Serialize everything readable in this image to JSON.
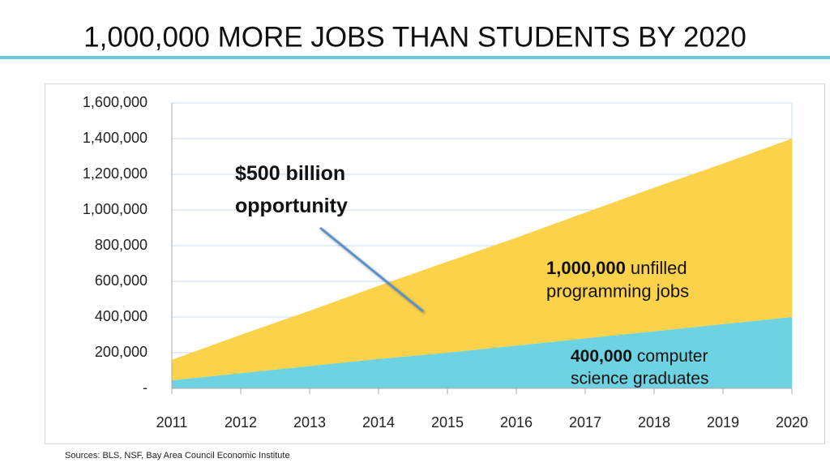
{
  "chart_data": {
    "type": "stacked-area",
    "title": "1,000,000 MORE JOBS THAN STUDENTS BY 2020",
    "categories": [
      "2011",
      "2012",
      "2013",
      "2014",
      "2015",
      "2016",
      "2017",
      "2018",
      "2019",
      "2020"
    ],
    "series": [
      {
        "name": "computer science graduates",
        "color": "#6dd3e2",
        "values": [
          45000,
          85000,
          125000,
          165000,
          200000,
          240000,
          280000,
          320000,
          360000,
          400000
        ]
      },
      {
        "name": "unfilled programming jobs",
        "color": "#fdd24b",
        "values": [
          115000,
          215000,
          310000,
          410000,
          510000,
          605000,
          705000,
          805000,
          900000,
          1000000
        ]
      }
    ],
    "ylim": [
      0,
      1600000
    ],
    "yticks": [
      {
        "value": 0,
        "label": "-"
      },
      {
        "value": 200000,
        "label": "200,000"
      },
      {
        "value": 400000,
        "label": "400,000"
      },
      {
        "value": 600000,
        "label": "600,000"
      },
      {
        "value": 800000,
        "label": "800,000"
      },
      {
        "value": 1000000,
        "label": "1,000,000"
      },
      {
        "value": 1200000,
        "label": "1,200,000"
      },
      {
        "value": 1400000,
        "label": "1,400,000"
      },
      {
        "value": 1600000,
        "label": "1,600,000"
      }
    ],
    "grid": true,
    "annotations": [
      {
        "text": [
          "$500 billion",
          "opportunity"
        ]
      },
      {
        "bold": "1,000,000",
        "text": [
          "unfilled",
          "programming jobs"
        ]
      },
      {
        "bold": "400,000",
        "text": [
          "computer",
          "science graduates"
        ]
      }
    ],
    "source": "Sources: BLS, NSF, Bay Area Council Economic Institute"
  }
}
